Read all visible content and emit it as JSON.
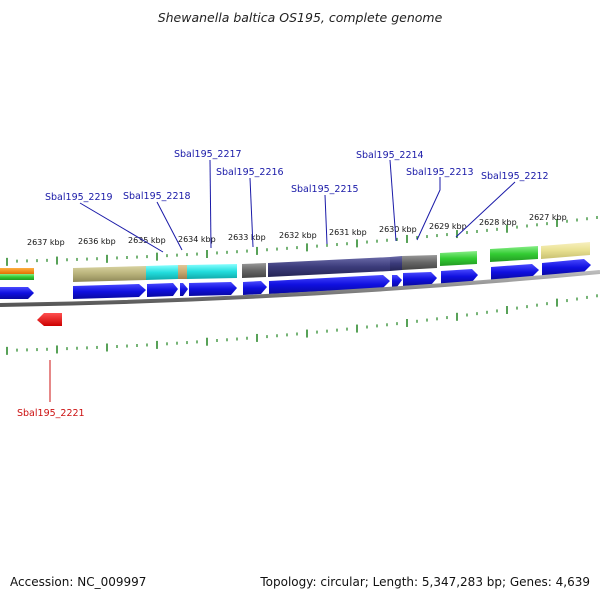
{
  "title": "Shewanella baltica OS195, complete genome",
  "footer": {
    "accession": "Accession: NC_009997",
    "topology": "Topology: circular; Length: 5,347,283 bp; Genes: 4,639"
  },
  "colors": {
    "tick": "#2e8b2e",
    "gene_arrow": "#1010e0",
    "label_blue": "#1a1aa8",
    "label_red": "#cc1111",
    "reverse_gene": "#e01010",
    "backbone": "#8a8a8a"
  },
  "scale_labels": [
    "2637 kbp",
    "2636 kbp",
    "2635 kbp",
    "2634 kbp",
    "2633 kbp",
    "2632 kbp",
    "2631 kbp",
    "2630 kbp",
    "2629 kbp",
    "2628 kbp",
    "2627 kbp"
  ],
  "gene_labels": [
    {
      "text": "Sbal195_2219",
      "color": "blue"
    },
    {
      "text": "Sbal195_2218",
      "color": "blue"
    },
    {
      "text": "Sbal195_2217",
      "color": "blue"
    },
    {
      "text": "Sbal195_2216",
      "color": "blue"
    },
    {
      "text": "Sbal195_2215",
      "color": "blue"
    },
    {
      "text": "Sbal195_2214",
      "color": "blue"
    },
    {
      "text": "Sbal195_2213",
      "color": "blue"
    },
    {
      "text": "Sbal195_2212",
      "color": "blue"
    },
    {
      "text": "Sbal195_2221",
      "color": "red"
    }
  ],
  "feature_colors": {
    "orange": "#ff8c00",
    "green": "#33cc33",
    "khaki": "#b8b27a",
    "cyan": "#22dddd",
    "tan": "#c8a870",
    "gray": "#666666",
    "slate": "#3b3b7a",
    "lightgreen": "#44cc44",
    "paleyellow": "#e8e090"
  }
}
